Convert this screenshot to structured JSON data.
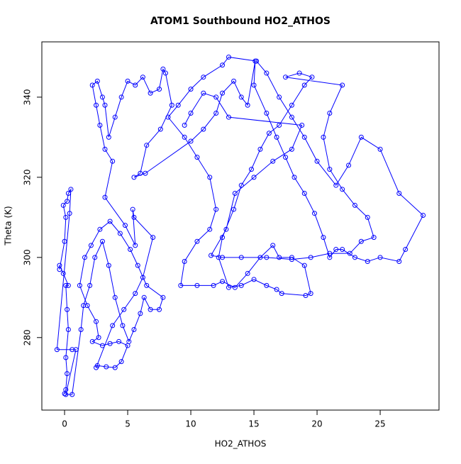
{
  "chart_data": {
    "type": "line",
    "markers": true,
    "title": "ATOM1 Southbound HO2_ATHOS",
    "x_label": "HO2_ATHOS",
    "y_label": "Theta (K)",
    "color": "#0000ff",
    "x": [
      0,
      0.1,
      0.2,
      0.1,
      0.3,
      0.2,
      0.1,
      0.3,
      -0.1,
      -0.4,
      -0.4,
      0,
      0.1,
      -0.1,
      0.2,
      0.3,
      0.5,
      0.4,
      -0.6,
      0.6,
      0.9,
      0.1,
      0.6,
      1.3,
      1.5,
      2,
      2.4,
      3,
      3.5,
      4,
      4.6,
      5.1,
      5.5,
      6,
      6.3,
      6.8,
      7.5,
      7.8,
      6.5,
      5.8,
      5.2,
      4.4,
      3.6,
      2.8,
      2.1,
      1.6,
      1.2,
      1.8,
      2.5,
      2.7,
      2.2,
      3,
      3.6,
      4.3,
      5,
      4.5,
      4,
      3.3,
      2.6,
      2.5,
      3.8,
      4.7,
      5.6,
      6.2,
      7,
      5.5,
      5.4,
      5.6,
      4.8,
      3.2,
      3.8,
      3.2,
      2.8,
      2.5,
      2.2,
      2.6,
      3,
      3.2,
      3.5,
      4,
      4.5,
      5,
      5.6,
      6.2,
      6.8,
      7.5,
      7.8,
      8,
      8.5,
      7.6,
      6.5,
      6,
      5.5,
      6.4,
      10,
      11,
      12,
      12.5,
      13.4,
      14,
      14.5,
      15.1,
      15,
      16,
      16.8,
      17.5,
      18.2,
      19,
      19.8,
      20.5,
      21,
      21.5,
      22,
      23,
      24,
      25,
      26.5,
      27,
      28.4,
      26.5,
      25,
      23.5,
      22.5,
      21.5,
      20,
      19,
      18,
      17,
      16,
      15.2,
      13,
      12.5,
      11,
      10,
      9,
      8.2,
      9.5,
      10.5,
      11.5,
      12,
      11.5,
      10.5,
      9.5,
      9.2,
      10.5,
      11.8,
      12.5,
      13.5,
      14.5,
      15.5,
      16.5,
      17,
      18,
      19,
      19.5,
      19.1,
      17.2,
      16.8,
      16,
      15,
      14,
      13,
      12.2,
      12.5,
      13.4,
      14,
      14.8,
      15.5,
      16.2,
      17,
      18,
      19,
      19.6,
      18.6,
      17.5,
      22,
      21,
      20.5,
      21,
      22,
      23,
      24,
      24.5,
      23.5,
      22.6,
      21,
      19.5,
      18,
      16,
      14,
      12.5,
      11.6,
      12.8,
      13.5,
      15,
      16.5,
      18,
      18.8,
      13,
      12,
      11,
      10,
      9.5
    ],
    "values": [
      266,
      267,
      271,
      275,
      282,
      287,
      293,
      293,
      296,
      298,
      297,
      304,
      310,
      313,
      314,
      316,
      317,
      311,
      277,
      277,
      277,
      265.8,
      265.8,
      282,
      288,
      293,
      300,
      304,
      298,
      290,
      283,
      279,
      282,
      286,
      290,
      287,
      287,
      290,
      293,
      298,
      302,
      306,
      309,
      307,
      303,
      300,
      293,
      288,
      284,
      280,
      279,
      278,
      278.5,
      279,
      278,
      274,
      272.5,
      272.7,
      273,
      272.5,
      283,
      287,
      291,
      295,
      305,
      310,
      312,
      303,
      308,
      315,
      324,
      327,
      333,
      338,
      343,
      344,
      340,
      338,
      330,
      335,
      340,
      344,
      343,
      345,
      341,
      342,
      347,
      346,
      338,
      332,
      328,
      321,
      320,
      321,
      329,
      332,
      336,
      341,
      344,
      340,
      338,
      349,
      343,
      336,
      330,
      325,
      320,
      316,
      311,
      305,
      300,
      302,
      302,
      300,
      299,
      300,
      299,
      302,
      310.5,
      316,
      327,
      330,
      323,
      318,
      324,
      330,
      335,
      340,
      346,
      349,
      350,
      348,
      345,
      342,
      338,
      335,
      330,
      325,
      320,
      312,
      307,
      304,
      299,
      293,
      293,
      293,
      294,
      292.5,
      296,
      300,
      303,
      300,
      300,
      298,
      291,
      290.5,
      291,
      292,
      293,
      294.5,
      293,
      292.5,
      300,
      305,
      312,
      318,
      322,
      327,
      331,
      333,
      338,
      343,
      345,
      346,
      345,
      343,
      336,
      330,
      322,
      317,
      313,
      310,
      305,
      304,
      301,
      301,
      300,
      299.5,
      300,
      300,
      300,
      300.5,
      307,
      316,
      320,
      324,
      327,
      333,
      335,
      340,
      341,
      336,
      333
    ],
    "xlim": [
      -1.8,
      29.66
    ],
    "ylim": [
      261.9,
      353.8
    ],
    "xticks": [
      0,
      5,
      10,
      15,
      20,
      25
    ],
    "yticks": [
      280,
      300,
      320,
      340
    ]
  }
}
